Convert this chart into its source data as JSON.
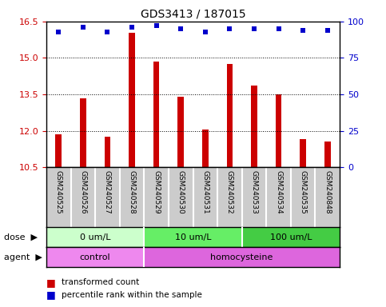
{
  "title": "GDS3413 / 187015",
  "samples": [
    "GSM240525",
    "GSM240526",
    "GSM240527",
    "GSM240528",
    "GSM240529",
    "GSM240530",
    "GSM240531",
    "GSM240532",
    "GSM240533",
    "GSM240534",
    "GSM240535",
    "GSM240848"
  ],
  "transformed_counts": [
    11.85,
    13.35,
    11.75,
    16.05,
    14.85,
    13.4,
    12.05,
    14.75,
    13.85,
    13.5,
    11.65,
    11.55
  ],
  "percentile_ranks": [
    93,
    96,
    93,
    96,
    97,
    95,
    93,
    95,
    95,
    95,
    94,
    94
  ],
  "ylim_left": [
    10.5,
    16.5
  ],
  "ylim_right": [
    0,
    100
  ],
  "yticks_left": [
    10.5,
    12.0,
    13.5,
    15.0,
    16.5
  ],
  "yticks_right": [
    0,
    25,
    50,
    75,
    100
  ],
  "bar_color": "#cc0000",
  "dot_color": "#0000cc",
  "dose_groups": [
    {
      "label": "0 um/L",
      "start": 0,
      "end": 4,
      "color": "#ccffcc"
    },
    {
      "label": "10 um/L",
      "start": 4,
      "end": 8,
      "color": "#66ee66"
    },
    {
      "label": "100 um/L",
      "start": 8,
      "end": 12,
      "color": "#44cc44"
    }
  ],
  "agent_groups": [
    {
      "label": "control",
      "start": 0,
      "end": 4,
      "color": "#ee88ee"
    },
    {
      "label": "homocysteine",
      "start": 4,
      "end": 12,
      "color": "#dd66dd"
    }
  ],
  "dose_label": "dose",
  "agent_label": "agent",
  "legend_bar_label": "transformed count",
  "legend_dot_label": "percentile rank within the sample",
  "tick_label_color_left": "#cc0000",
  "tick_label_color_right": "#0000cc",
  "xlabel_bg": "#cccccc",
  "bar_width": 0.25
}
